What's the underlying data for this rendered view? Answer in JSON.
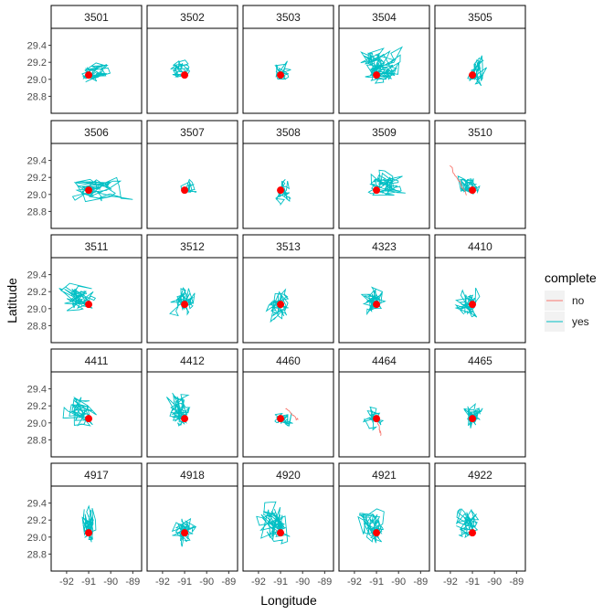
{
  "chart_data": {
    "type": "line",
    "subtype": "faceted movement tracks with start point",
    "xlabel": "Longitude",
    "ylabel": "Latitude",
    "xlim": [
      -92.7,
      -88.6
    ],
    "ylim": [
      28.6,
      29.6
    ],
    "xticks": [
      -92,
      -91,
      -90,
      -89
    ],
    "yticks": [
      28.8,
      29.0,
      29.2,
      29.4
    ],
    "grid": false,
    "facet_cols": 5,
    "start_point": {
      "x": -91.0,
      "y": 29.05,
      "color": "#ff0000"
    },
    "legend": {
      "title": "complete",
      "position": "right",
      "entries": [
        {
          "label": "no",
          "color": "#f8766d"
        },
        {
          "label": "yes",
          "color": "#00bfc4"
        }
      ]
    },
    "panels": [
      {
        "id": "3501",
        "complete": "yes",
        "extent": {
          "xmin": -91.6,
          "xmax": -89.4,
          "ymin": 28.93,
          "ymax": 29.28
        },
        "path_points": 60
      },
      {
        "id": "3502",
        "complete": "yes",
        "extent": {
          "xmin": -91.9,
          "xmax": -90.5,
          "ymin": 28.95,
          "ymax": 29.35
        },
        "path_points": 45
      },
      {
        "id": "3503",
        "complete": "yes",
        "extent": {
          "xmin": -91.6,
          "xmax": -90.3,
          "ymin": 28.92,
          "ymax": 29.3
        },
        "path_points": 50
      },
      {
        "id": "3504",
        "complete": "yes",
        "extent": {
          "xmin": -92.5,
          "xmax": -89.3,
          "ymin": 28.9,
          "ymax": 29.45
        },
        "path_points": 110
      },
      {
        "id": "3505",
        "complete": "yes",
        "extent": {
          "xmin": -91.4,
          "xmax": -90.2,
          "ymin": 28.83,
          "ymax": 29.4
        },
        "path_points": 60
      },
      {
        "id": "3506",
        "complete": "yes",
        "extent": {
          "xmin": -92.2,
          "xmax": -88.7,
          "ymin": 28.85,
          "ymax": 29.27
        },
        "path_points": 90
      },
      {
        "id": "3507",
        "complete": "yes",
        "extent": {
          "xmin": -91.4,
          "xmax": -90.0,
          "ymin": 28.98,
          "ymax": 29.23
        },
        "path_points": 35
      },
      {
        "id": "3508",
        "complete": "yes",
        "extent": {
          "xmin": -91.4,
          "xmax": -90.4,
          "ymin": 28.8,
          "ymax": 29.25
        },
        "path_points": 50
      },
      {
        "id": "3509",
        "complete": "yes",
        "extent": {
          "xmin": -92.0,
          "xmax": -89.1,
          "ymin": 28.95,
          "ymax": 29.35
        },
        "path_points": 80
      },
      {
        "id": "3510",
        "complete": "yes",
        "incomplete_segment": {
          "xmin": -92.0,
          "xmax": -91.3,
          "ymin": 29.0,
          "ymax": 29.33
        },
        "extent": {
          "xmin": -92.0,
          "xmax": -90.5,
          "ymin": 28.95,
          "ymax": 29.33
        },
        "path_points": 50
      },
      {
        "id": "3511",
        "complete": "yes",
        "extent": {
          "xmin": -92.6,
          "xmax": -90.5,
          "ymin": 28.92,
          "ymax": 29.35
        },
        "path_points": 70
      },
      {
        "id": "3512",
        "complete": "yes",
        "extent": {
          "xmin": -92.1,
          "xmax": -90.3,
          "ymin": 28.83,
          "ymax": 29.33
        },
        "path_points": 70
      },
      {
        "id": "3513",
        "complete": "yes",
        "extent": {
          "xmin": -92.0,
          "xmax": -90.3,
          "ymin": 28.8,
          "ymax": 29.33
        },
        "path_points": 70
      },
      {
        "id": "4323",
        "complete": "yes",
        "extent": {
          "xmin": -91.9,
          "xmax": -90.3,
          "ymin": 28.88,
          "ymax": 29.37
        },
        "path_points": 70
      },
      {
        "id": "4410",
        "complete": "yes",
        "extent": {
          "xmin": -92.0,
          "xmax": -90.4,
          "ymin": 28.85,
          "ymax": 29.3
        },
        "path_points": 80
      },
      {
        "id": "4411",
        "complete": "yes",
        "extent": {
          "xmin": -92.7,
          "xmax": -90.5,
          "ymin": 28.88,
          "ymax": 29.48
        },
        "path_points": 70
      },
      {
        "id": "4412",
        "complete": "yes",
        "extent": {
          "xmin": -92.2,
          "xmax": -90.6,
          "ymin": 28.88,
          "ymax": 29.48
        },
        "path_points": 80
      },
      {
        "id": "4460",
        "complete": "yes",
        "incomplete_segment": {
          "xmin": -90.8,
          "xmax": -90.2,
          "ymin": 29.03,
          "ymax": 29.18
        },
        "extent": {
          "xmin": -91.6,
          "xmax": -90.2,
          "ymin": 28.85,
          "ymax": 29.2
        },
        "path_points": 40
      },
      {
        "id": "4464",
        "complete": "yes",
        "incomplete_segment": {
          "xmin": -91.0,
          "xmax": -90.8,
          "ymin": 28.85,
          "ymax": 29.05
        },
        "extent": {
          "xmin": -91.8,
          "xmax": -90.5,
          "ymin": 28.85,
          "ymax": 29.25
        },
        "path_points": 50
      },
      {
        "id": "4465",
        "complete": "yes",
        "extent": {
          "xmin": -91.6,
          "xmax": -90.4,
          "ymin": 28.85,
          "ymax": 29.35
        },
        "path_points": 60
      },
      {
        "id": "4917",
        "complete": "yes",
        "extent": {
          "xmin": -91.6,
          "xmax": -90.3,
          "ymin": 28.83,
          "ymax": 29.45
        },
        "path_points": 60
      },
      {
        "id": "4918",
        "complete": "yes",
        "extent": {
          "xmin": -91.9,
          "xmax": -90.2,
          "ymin": 28.8,
          "ymax": 29.3
        },
        "path_points": 70
      },
      {
        "id": "4920",
        "complete": "yes",
        "extent": {
          "xmin": -92.7,
          "xmax": -90.4,
          "ymin": 28.85,
          "ymax": 29.53
        },
        "path_points": 80
      },
      {
        "id": "4921",
        "complete": "yes",
        "extent": {
          "xmin": -92.2,
          "xmax": -90.3,
          "ymin": 28.8,
          "ymax": 29.45
        },
        "path_points": 80
      },
      {
        "id": "4922",
        "complete": "yes",
        "extent": {
          "xmin": -92.2,
          "xmax": -90.3,
          "ymin": 28.98,
          "ymax": 29.45
        },
        "path_points": 70
      }
    ]
  }
}
